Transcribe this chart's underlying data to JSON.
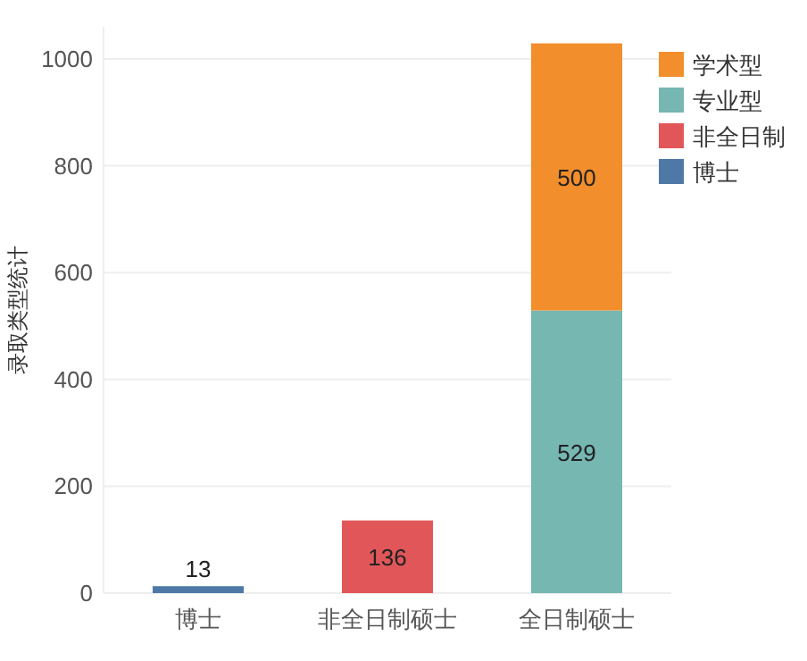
{
  "chart_data": {
    "type": "bar",
    "ylabel": "录取类型统计",
    "categories": [
      "博士",
      "非全日制硕士",
      "全日制硕士"
    ],
    "stacked": true,
    "series": [
      {
        "name": "博士",
        "color": "#4e79a7",
        "values": [
          13,
          null,
          null
        ]
      },
      {
        "name": "非全日制",
        "color": "#e15759",
        "values": [
          null,
          136,
          null
        ]
      },
      {
        "name": "专业型",
        "color": "#76b7b2",
        "values": [
          null,
          null,
          529
        ]
      },
      {
        "name": "学术型",
        "color": "#f28e2b",
        "values": [
          null,
          null,
          500
        ]
      }
    ],
    "data_labels": true,
    "ylim": [
      0,
      1060
    ],
    "yticks": [
      0,
      200,
      400,
      600,
      800,
      1000
    ],
    "grid": "y",
    "legend": "top right"
  }
}
